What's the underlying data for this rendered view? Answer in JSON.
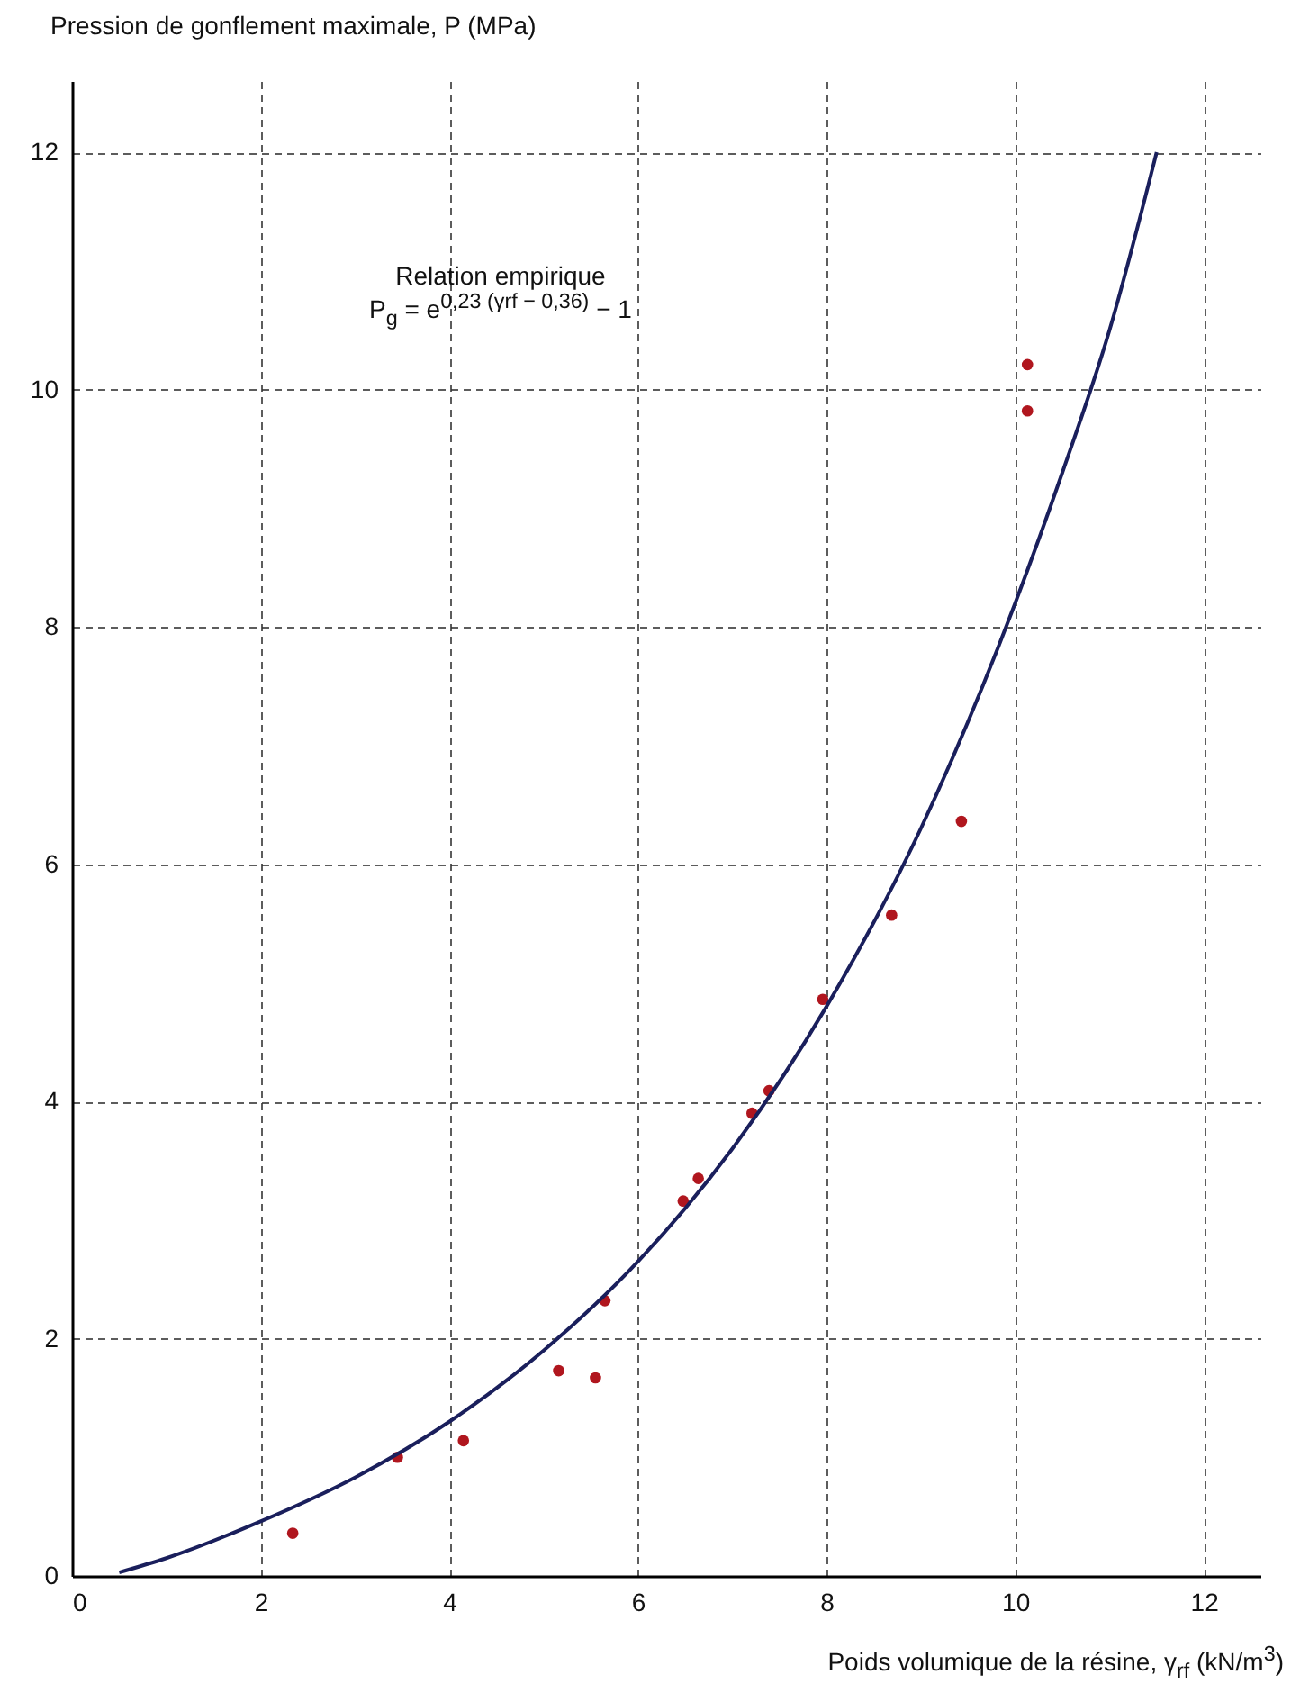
{
  "chart_data": {
    "type": "scatter",
    "xlabel": "Poids volumique de la résine, γ$_{rf}$ (kN/m$^{3}$)",
    "ylabel": "Pression de gonflement maximale, P (MPa)",
    "annotations": [
      "Relation empirique",
      "P$_{g}$ = e$^{0,23 (γrf − 0,36)}$ − 1"
    ],
    "series": [
      {
        "color": "#b0161e",
        "marker": "circle",
        "x": [
          2.34,
          3.45,
          4.15,
          5.16,
          5.55,
          5.65,
          6.48,
          6.64,
          7.21,
          7.39,
          7.96,
          8.69,
          9.43,
          10.13,
          10.13
        ],
        "values": [
          0.36,
          1.0,
          1.14,
          1.73,
          1.67,
          2.32,
          3.16,
          3.35,
          3.9,
          4.09,
          4.86,
          5.57,
          6.36,
          10.21,
          9.82
        ]
      },
      {
        "type": "line",
        "marker": "none",
        "color": "#1a1f5c",
        "x": [
          0.5,
          1,
          2,
          3,
          4,
          5,
          6,
          7,
          8,
          9,
          10,
          10.5,
          11,
          11.5
        ],
        "values": [
          0.03,
          0.15,
          0.46,
          0.83,
          1.3,
          1.9,
          2.65,
          3.6,
          4.8,
          6.3,
          8.2,
          9.3,
          10.5,
          12
        ]
      }
    ],
    "xlim": [
      0,
      12.6
    ],
    "ylim": [
      0,
      12.6
    ],
    "xticks": [
      0,
      2,
      4,
      6,
      8,
      10,
      12
    ],
    "yticks": [
      0,
      2,
      4,
      6,
      8,
      10,
      12
    ],
    "grid": true,
    "line_style": "solid"
  }
}
